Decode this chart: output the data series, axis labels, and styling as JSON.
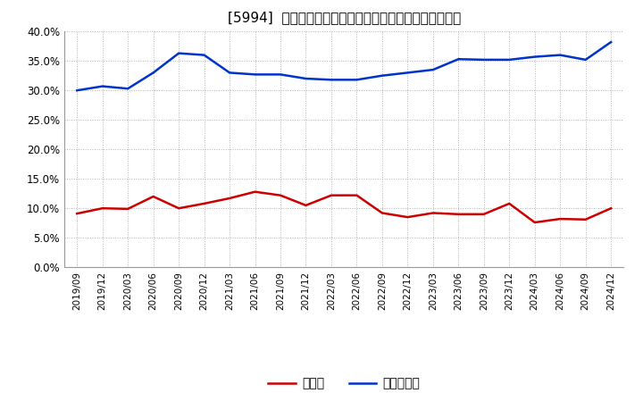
{
  "title": "[5994]  現預金、有利子負債の総資産に対する比率の推移",
  "ylim": [
    0.0,
    0.4
  ],
  "yticks": [
    0.0,
    0.05,
    0.1,
    0.15,
    0.2,
    0.25,
    0.3,
    0.35,
    0.4
  ],
  "x_labels": [
    "2019/09",
    "2019/12",
    "2020/03",
    "2020/06",
    "2020/09",
    "2020/12",
    "2021/03",
    "2021/06",
    "2021/09",
    "2021/12",
    "2022/03",
    "2022/06",
    "2022/09",
    "2022/12",
    "2023/03",
    "2023/06",
    "2023/09",
    "2023/12",
    "2024/03",
    "2024/06",
    "2024/09",
    "2024/12"
  ],
  "cash": [
    0.091,
    0.1,
    0.099,
    0.12,
    0.1,
    0.108,
    0.117,
    0.128,
    0.122,
    0.105,
    0.122,
    0.122,
    0.092,
    0.085,
    0.092,
    0.09,
    0.09,
    0.108,
    0.076,
    0.082,
    0.081,
    0.1
  ],
  "debt": [
    0.3,
    0.307,
    0.303,
    0.33,
    0.363,
    0.36,
    0.33,
    0.327,
    0.327,
    0.32,
    0.318,
    0.318,
    0.325,
    0.33,
    0.335,
    0.353,
    0.352,
    0.352,
    0.357,
    0.36,
    0.352,
    0.382
  ],
  "cash_color": "#cc0000",
  "debt_color": "#0033cc",
  "background_color": "#ffffff",
  "plot_bg_color": "#ffffff",
  "grid_color": "#aaaaaa",
  "title_fontsize": 11,
  "legend_labels": [
    "現預金",
    "有利子負債"
  ],
  "line_width": 1.8
}
